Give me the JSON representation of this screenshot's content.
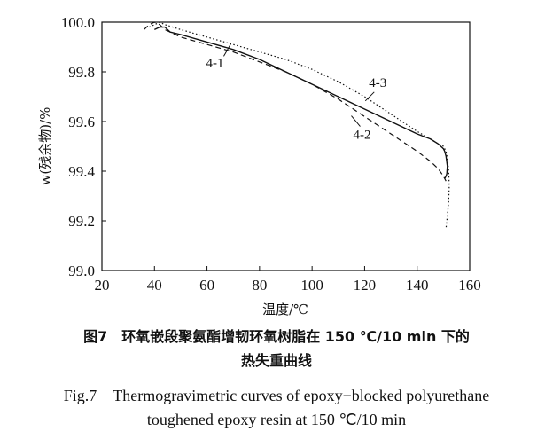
{
  "chart_data": {
    "type": "line",
    "xlabel": "温度/℃",
    "ylabel": "w(残余物)/%",
    "xlim": [
      20,
      160
    ],
    "ylim": [
      99.0,
      100.0
    ],
    "xticks": [
      "20",
      "40",
      "60",
      "80",
      "100",
      "120",
      "140",
      "160"
    ],
    "yticks": [
      "99.0",
      "99.2",
      "99.4",
      "99.6",
      "99.8",
      "100.0"
    ],
    "grid": false,
    "legend": "none",
    "series": [
      {
        "name": "4-1",
        "style": "solid",
        "color": "#111111",
        "x": [
          40,
          42,
          44,
          46,
          50,
          60,
          70,
          80,
          90,
          100,
          110,
          120,
          130,
          140,
          145,
          148,
          150,
          150.5,
          151,
          151.5,
          151.3,
          151,
          150.5
        ],
        "y": [
          99.97,
          99.98,
          99.98,
          99.96,
          99.95,
          99.92,
          99.89,
          99.85,
          99.8,
          99.75,
          99.7,
          99.65,
          99.6,
          99.55,
          99.53,
          99.51,
          99.49,
          99.48,
          99.46,
          99.42,
          99.39,
          99.38,
          99.37
        ]
      },
      {
        "name": "4-2",
        "style": "dashed",
        "color": "#111111",
        "x": [
          36,
          38,
          40,
          42,
          44,
          46,
          50,
          60,
          70,
          80,
          90,
          100,
          110,
          120,
          130,
          140,
          145,
          148,
          150,
          150.5,
          151
        ],
        "y": [
          99.97,
          99.99,
          100.0,
          99.99,
          99.97,
          99.96,
          99.94,
          99.91,
          99.88,
          99.84,
          99.8,
          99.75,
          99.69,
          99.62,
          99.55,
          99.48,
          99.44,
          99.41,
          99.38,
          99.37,
          99.36
        ]
      },
      {
        "name": "4-3",
        "style": "dotted",
        "color": "#111111",
        "x": [
          38,
          40,
          42,
          44,
          50,
          60,
          70,
          80,
          90,
          100,
          110,
          120,
          130,
          140,
          145,
          148,
          150,
          151,
          151.5,
          152,
          152.2,
          152,
          151.5,
          151
        ],
        "y": [
          99.98,
          99.99,
          100.0,
          99.99,
          99.97,
          99.94,
          99.91,
          99.88,
          99.85,
          99.81,
          99.76,
          99.7,
          99.63,
          99.56,
          99.53,
          99.51,
          99.5,
          99.48,
          99.45,
          99.4,
          99.34,
          99.28,
          99.22,
          99.17
        ]
      }
    ],
    "annotations": [
      {
        "text": "4-1",
        "x": 63,
        "y": 99.82
      },
      {
        "text": "4-3",
        "x": 125,
        "y": 99.74
      },
      {
        "text": "4-2",
        "x": 119,
        "y": 99.53
      }
    ]
  },
  "caption": {
    "cn_line1": "图7　环氧嵌段聚氨酯增韧环氧树脂在 150 ℃/10 min 下的",
    "cn_line2": "热失重曲线",
    "en_line1": "Fig.7　Thermogravimetric curves of epoxy−blocked polyurethane",
    "en_line2": "toughened epoxy resin at 150 ℃/10 min"
  }
}
